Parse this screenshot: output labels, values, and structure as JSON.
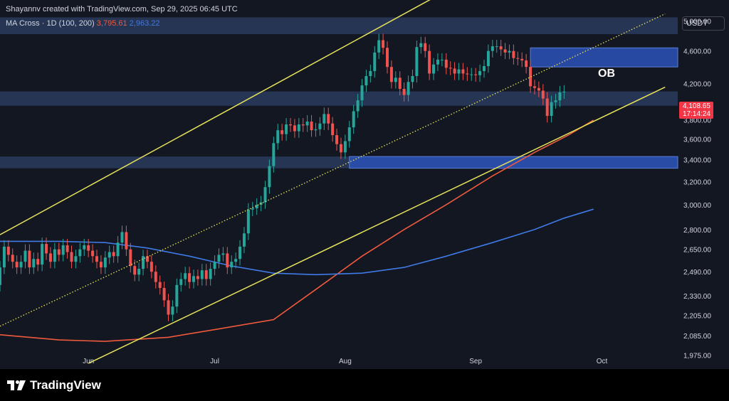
{
  "header": {
    "attribution": "Shayannv created with TradingView.com, Sep 29, 2025 06:45 UTC",
    "indicator_label": "MA Cross · 1D (100, 200)",
    "ma100_value": "3,795.61",
    "ma200_value": "2,963.22"
  },
  "price_scale": {
    "currency": "USDT",
    "last_price": "4,108.65",
    "countdown": "17:14:24"
  },
  "annotation": {
    "ob_label": "OB"
  },
  "footer": {
    "brand": "TradingView"
  },
  "colors": {
    "background": "#131722",
    "up": "#26a69a",
    "down": "#ef5350",
    "zone": "#2a3b5c",
    "zone_bright": "#2a4fb0",
    "channel": "#e8e35a",
    "ma100": "#ef5a3c",
    "ma200": "#3f7ae6",
    "text": "#d1d4dc"
  },
  "chart_data": {
    "type": "candlestick",
    "title": "",
    "symbol_timeframe": "1D",
    "y_scale": "log",
    "ylim": [
      1900,
      5300
    ],
    "xlim": [
      "2025-05-11",
      "2025-10-19"
    ],
    "y_ticks": [
      "5,000.00",
      "4,600.00",
      "4,200.00",
      "3,800.00",
      "3,600.00",
      "3,400.00",
      "3,200.00",
      "3,000.00",
      "2,800.00",
      "2,650.00",
      "2,490.00",
      "2,330.00",
      "2,205.00",
      "2,085.00",
      "1,975.00"
    ],
    "y_tick_values": [
      5000,
      4600,
      4200,
      3800,
      3600,
      3400,
      3200,
      3000,
      2800,
      2650,
      2490,
      2330,
      2205,
      2085,
      1975
    ],
    "x_ticks": [
      {
        "label": "Jun",
        "date": "2025-06-01"
      },
      {
        "label": "Jul",
        "date": "2025-07-01"
      },
      {
        "label": "Aug",
        "date": "2025-08-01"
      },
      {
        "label": "Sep",
        "date": "2025-09-01"
      },
      {
        "label": "Oct",
        "date": "2025-10-01"
      }
    ],
    "candles": {
      "start_date": "2025-05-11",
      "close": [
        2520,
        2670,
        2610,
        2560,
        2520,
        2560,
        2640,
        2520,
        2580,
        2540,
        2690,
        2620,
        2560,
        2650,
        2610,
        2680,
        2630,
        2560,
        2600,
        2650,
        2680,
        2640,
        2600,
        2560,
        2520,
        2590,
        2630,
        2600,
        2700,
        2780,
        2650,
        2530,
        2470,
        2510,
        2600,
        2560,
        2490,
        2420,
        2380,
        2300,
        2210,
        2260,
        2400,
        2440,
        2480,
        2420,
        2460,
        2440,
        2500,
        2440,
        2510,
        2560,
        2610,
        2620,
        2520,
        2560,
        2580,
        2670,
        2770,
        2960,
        2970,
        3000,
        3020,
        3150,
        3340,
        3560,
        3690,
        3650,
        3750,
        3740,
        3680,
        3750,
        3740,
        3780,
        3690,
        3700,
        3760,
        3860,
        3760,
        3640,
        3550,
        3470,
        3580,
        3720,
        3890,
        4010,
        4180,
        4290,
        4350,
        4580,
        4740,
        4640,
        4400,
        4220,
        4270,
        4140,
        4070,
        4220,
        4290,
        4650,
        4700,
        4600,
        4320,
        4430,
        4490,
        4490,
        4390,
        4380,
        4320,
        4370,
        4320,
        4310,
        4310,
        4300,
        4350,
        4410,
        4600,
        4660,
        4660,
        4620,
        4580,
        4600,
        4510,
        4500,
        4480,
        4400,
        4170,
        4150,
        4120,
        4030,
        3840,
        3990,
        4010,
        4100,
        4108.65
      ],
      "open": [
        2400,
        2520,
        2670,
        2610,
        2560,
        2520,
        2560,
        2640,
        2520,
        2580,
        2540,
        2690,
        2620,
        2560,
        2650,
        2610,
        2680,
        2630,
        2560,
        2600,
        2650,
        2680,
        2640,
        2600,
        2560,
        2520,
        2590,
        2630,
        2600,
        2700,
        2780,
        2650,
        2530,
        2470,
        2510,
        2600,
        2560,
        2490,
        2420,
        2380,
        2300,
        2210,
        2260,
        2400,
        2440,
        2480,
        2420,
        2460,
        2440,
        2500,
        2440,
        2510,
        2560,
        2610,
        2620,
        2520,
        2560,
        2580,
        2670,
        2770,
        2960,
        2970,
        3000,
        3020,
        3150,
        3340,
        3560,
        3690,
        3650,
        3750,
        3740,
        3680,
        3750,
        3740,
        3780,
        3690,
        3700,
        3760,
        3860,
        3760,
        3640,
        3550,
        3470,
        3580,
        3720,
        3890,
        4010,
        4180,
        4290,
        4350,
        4580,
        4740,
        4640,
        4400,
        4220,
        4270,
        4140,
        4070,
        4220,
        4290,
        4650,
        4700,
        4600,
        4320,
        4430,
        4490,
        4490,
        4390,
        4380,
        4320,
        4370,
        4320,
        4310,
        4310,
        4300,
        4350,
        4410,
        4600,
        4660,
        4660,
        4620,
        4580,
        4600,
        4510,
        4500,
        4480,
        4400,
        4170,
        4150,
        4120,
        4030,
        3840,
        3990,
        4010,
        4100
      ]
    },
    "ma100": {
      "label": "MA 100",
      "points": [
        [
          "2025-05-11",
          2090
        ],
        [
          "2025-05-25",
          2060
        ],
        [
          "2025-06-05",
          2052
        ],
        [
          "2025-06-20",
          2075
        ],
        [
          "2025-07-01",
          2120
        ],
        [
          "2025-07-15",
          2180
        ],
        [
          "2025-07-25",
          2370
        ],
        [
          "2025-08-05",
          2600
        ],
        [
          "2025-08-15",
          2800
        ],
        [
          "2025-08-25",
          3000
        ],
        [
          "2025-09-05",
          3250
        ],
        [
          "2025-09-15",
          3470
        ],
        [
          "2025-09-23",
          3640
        ],
        [
          "2025-09-29",
          3795.61
        ]
      ]
    },
    "ma200": {
      "label": "MA 200",
      "points": [
        [
          "2025-05-11",
          2710
        ],
        [
          "2025-05-25",
          2710
        ],
        [
          "2025-06-05",
          2700
        ],
        [
          "2025-06-15",
          2660
        ],
        [
          "2025-06-25",
          2600
        ],
        [
          "2025-07-05",
          2530
        ],
        [
          "2025-07-15",
          2480
        ],
        [
          "2025-07-25",
          2470
        ],
        [
          "2025-08-05",
          2480
        ],
        [
          "2025-08-15",
          2520
        ],
        [
          "2025-08-25",
          2600
        ],
        [
          "2025-09-05",
          2700
        ],
        [
          "2025-09-15",
          2800
        ],
        [
          "2025-09-22",
          2890
        ],
        [
          "2025-09-29",
          2963.22
        ]
      ]
    },
    "channel_lines": [
      {
        "style": "solid",
        "from": [
          "2025-05-11",
          2760
        ],
        "to": [
          "2025-09-12",
          6100
        ]
      },
      {
        "style": "dotted",
        "from": [
          "2025-05-11",
          2140
        ],
        "to": [
          "2025-10-16",
          5100
        ]
      },
      {
        "style": "solid",
        "from": [
          "2025-06-01",
          1930
        ],
        "to": [
          "2025-10-16",
          4160
        ]
      }
    ],
    "zones": [
      {
        "low": 4820,
        "high": 5050,
        "from": "2025-05-11",
        "to": "2025-10-19"
      },
      {
        "low": 4400,
        "high": 4640,
        "from": "2025-09-14",
        "to": "2025-10-19",
        "label": "OB",
        "bright": true
      },
      {
        "low": 3950,
        "high": 4110,
        "from": "2025-05-11",
        "to": "2025-10-19"
      },
      {
        "low": 3320,
        "high": 3430,
        "from": "2025-05-11",
        "to": "2025-10-19"
      },
      {
        "low": 3320,
        "high": 3430,
        "from": "2025-08-02",
        "to": "2025-10-19",
        "bright": true
      }
    ]
  }
}
